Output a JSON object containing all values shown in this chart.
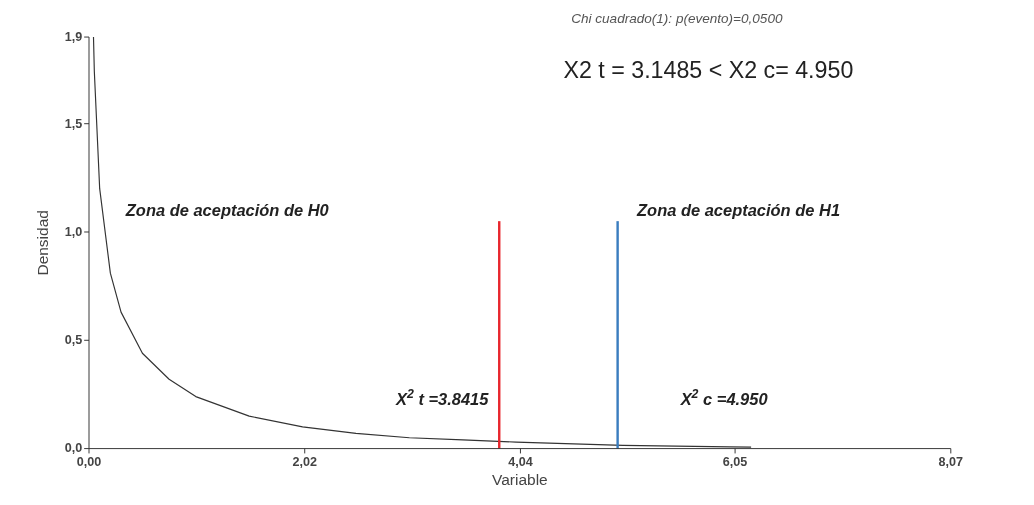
{
  "chart_data": {
    "type": "line",
    "title": "Chi cuadrado(1): p(evento)=0,0500",
    "xlabel": "Variable",
    "ylabel": "Densidad",
    "xlim": [
      0,
      8.07
    ],
    "ylim": [
      0,
      1.9
    ],
    "xticks": [
      {
        "value": 0,
        "label": "0,00"
      },
      {
        "value": 2.02,
        "label": "2,02"
      },
      {
        "value": 4.04,
        "label": "4,04"
      },
      {
        "value": 6.05,
        "label": "6,05"
      },
      {
        "value": 8.07,
        "label": "8,07"
      }
    ],
    "yticks": [
      {
        "value": 0,
        "label": "0,0"
      },
      {
        "value": 0.5,
        "label": "0,5"
      },
      {
        "value": 1,
        "label": "1,0"
      },
      {
        "value": 1.5,
        "label": "1,5"
      },
      {
        "value": 1.9,
        "label": "1,9"
      }
    ],
    "grid": false,
    "marker": "none",
    "line_style": "solid",
    "series": [
      {
        "color": "#333333",
        "x": [
          0.042,
          0.05,
          0.1,
          0.2,
          0.3,
          0.5,
          0.75,
          1,
          1.5,
          2,
          2.5,
          3,
          3.5,
          4,
          5,
          6,
          6.2
        ],
        "values": [
          1.9,
          1.74,
          1.2,
          0.81,
          0.63,
          0.44,
          0.32,
          0.24,
          0.15,
          0.1,
          0.07,
          0.05,
          0.04,
          0.03,
          0.015,
          0.008,
          0.007
        ]
      },
      {
        "color": "#e8262d",
        "x": [
          3.8415,
          3.8415
        ],
        "values": [
          0,
          1.05
        ]
      },
      {
        "color": "#3a7dbf",
        "x": [
          4.95,
          4.95
        ],
        "values": [
          0,
          1.05
        ]
      }
    ],
    "annotations": [
      "X2 t = 3.1485   <   X2 c= 4.950",
      "Zona de aceptación de H0",
      "Zona de aceptación de H1",
      "X$^{2}$ t =3.8415",
      "X$^{2}$ c =4.950"
    ]
  }
}
